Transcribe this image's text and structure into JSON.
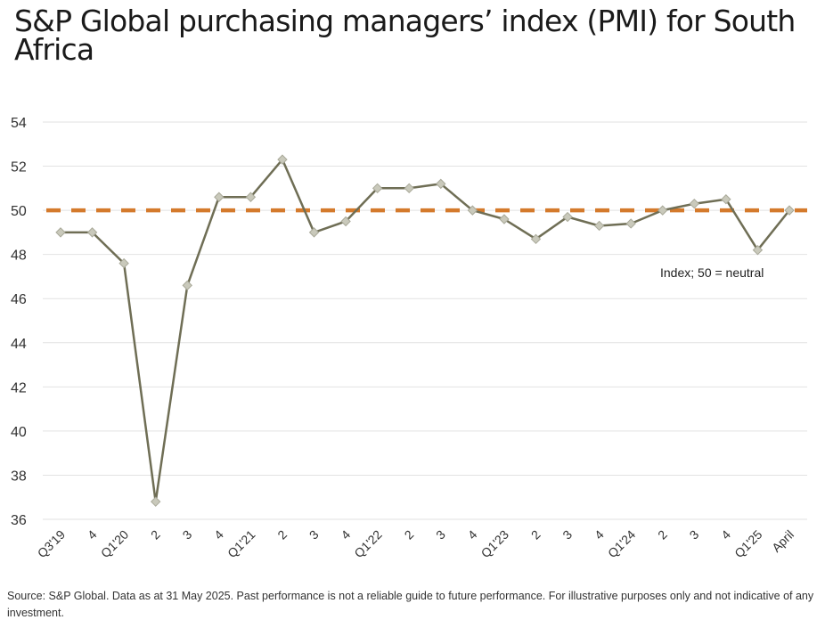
{
  "title": "S&P Global purchasing managers’ index (PMI) for South Africa",
  "source_note": "Source: S&P Global. Data as at 31 May 2025. Past performance is not a reliable guide to future performance. For illustrative purposes only and not indicative of any investment.",
  "colors": {
    "line": "#6f6e55",
    "marker_fill": "#c9c9bb",
    "marker_stroke": "#a9a999",
    "reference": "#d47a2c",
    "grid": "#e2e2e2"
  },
  "chart_data": {
    "type": "line",
    "title": "S&P Global purchasing managers’ index (PMI) for South Africa",
    "xlabel": "",
    "ylabel": "",
    "ylim": [
      36,
      54
    ],
    "yticks": [
      36,
      38,
      40,
      42,
      44,
      46,
      48,
      50,
      52,
      54
    ],
    "grid": true,
    "categories": [
      "Q3'19",
      "4",
      "Q1'20",
      "2",
      "3",
      "4",
      "Q1'21",
      "2",
      "3",
      "4",
      "Q1'22",
      "2",
      "3",
      "4",
      "Q1'23",
      "2",
      "3",
      "4",
      "Q1'24",
      "2",
      "3",
      "4",
      "Q1'25",
      "April"
    ],
    "series": [
      {
        "name": "PMI",
        "values": [
          49.0,
          49.0,
          47.6,
          36.8,
          46.6,
          50.6,
          50.6,
          52.3,
          49.0,
          49.5,
          51.0,
          51.0,
          51.2,
          50.0,
          49.6,
          48.7,
          49.7,
          49.3,
          49.4,
          50.0,
          50.3,
          50.5,
          48.2,
          50.0
        ]
      }
    ],
    "reference_line": {
      "value": 50,
      "style": "dashed"
    },
    "annotation": "Index; 50 = neutral"
  }
}
